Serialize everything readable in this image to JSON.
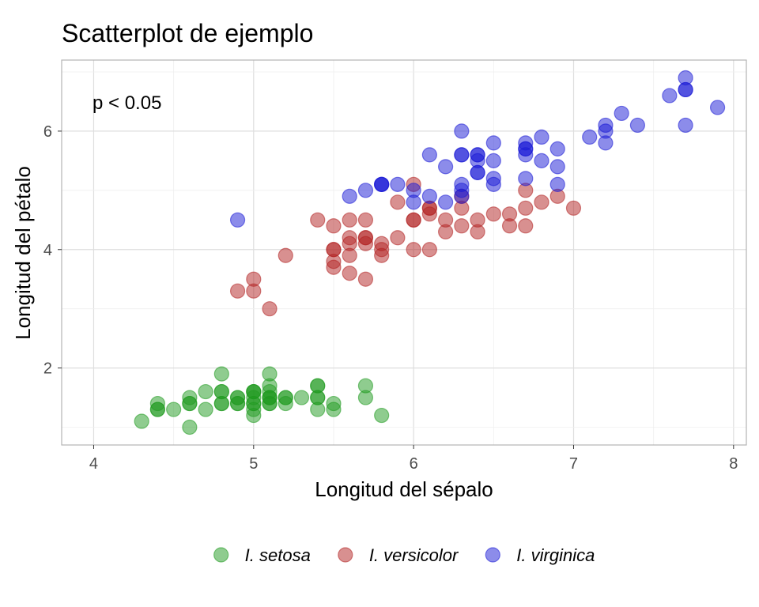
{
  "chart_data": {
    "type": "scatter",
    "title": "Scatterplot de ejemplo",
    "annotation": "p < 0.05",
    "xlabel": "Longitud del sépalo",
    "ylabel": "Longitud del pétalo",
    "xlim": [
      3.8,
      8.08
    ],
    "ylim": [
      0.7,
      7.2
    ],
    "xticks": [
      4,
      5,
      6,
      7,
      8
    ],
    "yticks": [
      2,
      4,
      6
    ],
    "grid": true,
    "legend_position": "bottom",
    "series": [
      {
        "name": "I. setosa",
        "color": "#1f9a1f",
        "points": [
          [
            5.1,
            1.4
          ],
          [
            4.9,
            1.4
          ],
          [
            4.7,
            1.3
          ],
          [
            4.6,
            1.5
          ],
          [
            5.0,
            1.4
          ],
          [
            5.4,
            1.7
          ],
          [
            4.6,
            1.4
          ],
          [
            5.0,
            1.5
          ],
          [
            4.4,
            1.4
          ],
          [
            4.9,
            1.5
          ],
          [
            5.4,
            1.5
          ],
          [
            4.8,
            1.6
          ],
          [
            4.8,
            1.4
          ],
          [
            4.3,
            1.1
          ],
          [
            5.8,
            1.2
          ],
          [
            5.7,
            1.5
          ],
          [
            5.4,
            1.3
          ],
          [
            5.1,
            1.4
          ],
          [
            5.7,
            1.7
          ],
          [
            5.1,
            1.5
          ],
          [
            5.4,
            1.7
          ],
          [
            5.1,
            1.5
          ],
          [
            4.6,
            1.0
          ],
          [
            5.1,
            1.7
          ],
          [
            4.8,
            1.9
          ],
          [
            5.0,
            1.6
          ],
          [
            5.0,
            1.6
          ],
          [
            5.2,
            1.5
          ],
          [
            5.2,
            1.4
          ],
          [
            4.7,
            1.6
          ],
          [
            4.8,
            1.6
          ],
          [
            5.4,
            1.5
          ],
          [
            5.2,
            1.5
          ],
          [
            5.5,
            1.4
          ],
          [
            4.9,
            1.5
          ],
          [
            5.0,
            1.2
          ],
          [
            5.5,
            1.3
          ],
          [
            4.9,
            1.4
          ],
          [
            4.4,
            1.3
          ],
          [
            5.1,
            1.5
          ],
          [
            5.0,
            1.3
          ],
          [
            4.5,
            1.3
          ],
          [
            4.4,
            1.3
          ],
          [
            5.0,
            1.6
          ],
          [
            5.1,
            1.9
          ],
          [
            4.8,
            1.4
          ],
          [
            5.1,
            1.6
          ],
          [
            4.6,
            1.4
          ],
          [
            5.3,
            1.5
          ],
          [
            5.0,
            1.4
          ]
        ]
      },
      {
        "name": "I. versicolor",
        "color": "#b22222",
        "points": [
          [
            7.0,
            4.7
          ],
          [
            6.4,
            4.5
          ],
          [
            6.9,
            4.9
          ],
          [
            5.5,
            4.0
          ],
          [
            6.5,
            4.6
          ],
          [
            5.7,
            4.5
          ],
          [
            6.3,
            4.7
          ],
          [
            4.9,
            3.3
          ],
          [
            6.6,
            4.6
          ],
          [
            5.2,
            3.9
          ],
          [
            5.0,
            3.5
          ],
          [
            5.9,
            4.2
          ],
          [
            6.0,
            4.0
          ],
          [
            6.1,
            4.7
          ],
          [
            5.6,
            3.6
          ],
          [
            6.7,
            4.4
          ],
          [
            5.6,
            4.5
          ],
          [
            5.8,
            4.1
          ],
          [
            6.2,
            4.5
          ],
          [
            5.6,
            3.9
          ],
          [
            5.9,
            4.8
          ],
          [
            6.1,
            4.0
          ],
          [
            6.3,
            4.9
          ],
          [
            6.1,
            4.7
          ],
          [
            6.4,
            4.3
          ],
          [
            6.6,
            4.4
          ],
          [
            6.8,
            4.8
          ],
          [
            6.7,
            5.0
          ],
          [
            6.0,
            4.5
          ],
          [
            5.7,
            3.5
          ],
          [
            5.5,
            3.8
          ],
          [
            5.5,
            3.7
          ],
          [
            5.8,
            3.9
          ],
          [
            6.0,
            5.1
          ],
          [
            5.4,
            4.5
          ],
          [
            6.0,
            4.5
          ],
          [
            6.7,
            4.7
          ],
          [
            6.3,
            4.4
          ],
          [
            5.6,
            4.1
          ],
          [
            5.5,
            4.0
          ],
          [
            5.5,
            4.4
          ],
          [
            6.1,
            4.6
          ],
          [
            5.8,
            4.0
          ],
          [
            5.0,
            3.3
          ],
          [
            5.6,
            4.2
          ],
          [
            5.7,
            4.2
          ],
          [
            5.7,
            4.2
          ],
          [
            6.2,
            4.3
          ],
          [
            5.1,
            3.0
          ],
          [
            5.7,
            4.1
          ]
        ]
      },
      {
        "name": "I. virginica",
        "color": "#1a1ad6",
        "points": [
          [
            6.3,
            6.0
          ],
          [
            5.8,
            5.1
          ],
          [
            7.1,
            5.9
          ],
          [
            6.3,
            5.6
          ],
          [
            6.5,
            5.8
          ],
          [
            7.6,
            6.6
          ],
          [
            4.9,
            4.5
          ],
          [
            7.3,
            6.3
          ],
          [
            6.7,
            5.8
          ],
          [
            7.2,
            6.1
          ],
          [
            6.5,
            5.1
          ],
          [
            6.4,
            5.3
          ],
          [
            6.8,
            5.5
          ],
          [
            5.7,
            5.0
          ],
          [
            5.8,
            5.1
          ],
          [
            6.4,
            5.3
          ],
          [
            6.5,
            5.5
          ],
          [
            7.7,
            6.7
          ],
          [
            7.7,
            6.9
          ],
          [
            6.0,
            5.0
          ],
          [
            6.9,
            5.7
          ],
          [
            5.6,
            4.9
          ],
          [
            7.7,
            6.7
          ],
          [
            6.3,
            4.9
          ],
          [
            6.7,
            5.7
          ],
          [
            7.2,
            6.0
          ],
          [
            6.2,
            4.8
          ],
          [
            6.1,
            4.9
          ],
          [
            6.4,
            5.6
          ],
          [
            7.2,
            5.8
          ],
          [
            7.4,
            6.1
          ],
          [
            7.9,
            6.4
          ],
          [
            6.4,
            5.6
          ],
          [
            6.3,
            5.1
          ],
          [
            6.1,
            5.6
          ],
          [
            7.7,
            6.1
          ],
          [
            6.3,
            5.6
          ],
          [
            6.4,
            5.5
          ],
          [
            6.0,
            4.8
          ],
          [
            6.9,
            5.4
          ],
          [
            6.7,
            5.6
          ],
          [
            6.9,
            5.1
          ],
          [
            5.8,
            5.1
          ],
          [
            6.8,
            5.9
          ],
          [
            6.7,
            5.7
          ],
          [
            6.7,
            5.2
          ],
          [
            6.3,
            5.0
          ],
          [
            6.5,
            5.2
          ],
          [
            6.2,
            5.4
          ],
          [
            5.9,
            5.1
          ]
        ]
      }
    ]
  }
}
